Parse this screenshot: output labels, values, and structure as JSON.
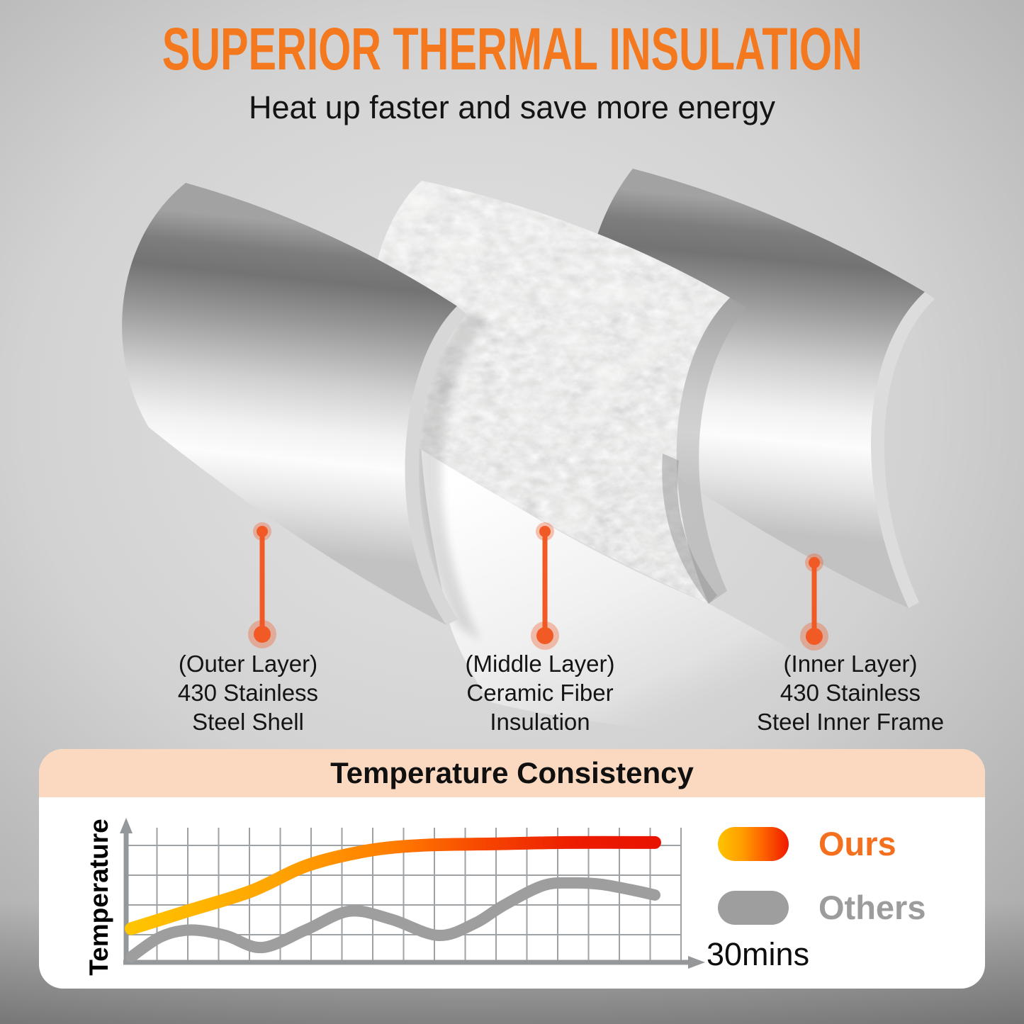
{
  "header": {
    "title": "SUPERIOR THERMAL INSULATION",
    "subtitle": "Heat up faster and save more energy"
  },
  "layers": {
    "items": [
      {
        "id": "outer",
        "lines": [
          "(Outer Layer)",
          "430 Stainless",
          "Steel Shell"
        ]
      },
      {
        "id": "middle",
        "lines": [
          "(Middle Layer)",
          "Ceramic Fiber",
          "Insulation"
        ]
      },
      {
        "id": "inner",
        "lines": [
          "(Inner Layer)",
          "430 Stainless",
          "Steel Inner Frame"
        ]
      }
    ]
  },
  "colors": {
    "accent_orange_title": "#F4781E",
    "pointer_orange": "#F15A24",
    "card_header_peach": "#FBD9C1",
    "ours_label_orange": "#F4701E",
    "others_gray": "#9C9C9C",
    "grid_gray": "#9EA2A5",
    "axis_gray": "#95989B",
    "ours_gradient": [
      "#FFC400",
      "#FF9C00",
      "#FF6A00",
      "#EE1A00"
    ]
  },
  "chart_data": {
    "type": "line",
    "title": "Temperature Consistency",
    "xlabel": "30mins",
    "ylabel": "Temperature",
    "x_max": 30,
    "y_max": 100,
    "grid": true,
    "legend_position": "right",
    "layout": {
      "x_gridlines": 18,
      "y_gridlines": 4
    },
    "series": [
      {
        "id": "ours",
        "name": "Ours",
        "style": "gradient-yellow-red",
        "points": [
          [
            0,
            25
          ],
          [
            3.2,
            38
          ],
          [
            6.9,
            53
          ],
          [
            10.1,
            72
          ],
          [
            13.6,
            83
          ],
          [
            16.8,
            87
          ],
          [
            20.9,
            88
          ],
          [
            24.9,
            89
          ],
          [
            30,
            89
          ]
        ]
      },
      {
        "id": "others",
        "name": "Others",
        "style": "gray",
        "points": [
          [
            0,
            4
          ],
          [
            1.7,
            19
          ],
          [
            3.4,
            24
          ],
          [
            5.4,
            20
          ],
          [
            7.5,
            11
          ],
          [
            10,
            24
          ],
          [
            12.5,
            38
          ],
          [
            14.9,
            32
          ],
          [
            17.6,
            20
          ],
          [
            19.7,
            29
          ],
          [
            21.3,
            42
          ],
          [
            23.6,
            57
          ],
          [
            25.3,
            59
          ],
          [
            26.9,
            58
          ],
          [
            28.6,
            54
          ],
          [
            30,
            50
          ]
        ]
      }
    ]
  }
}
